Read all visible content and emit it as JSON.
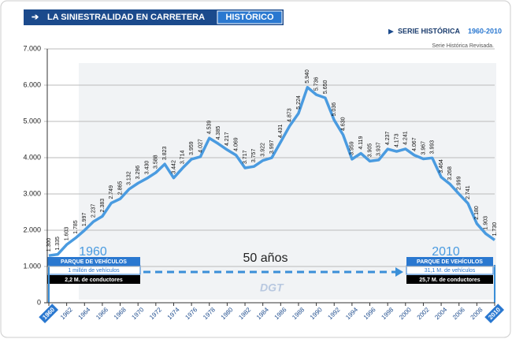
{
  "chart_data": {
    "type": "line",
    "header": {
      "title": "LA SINIESTRALIDAD EN CARRETERA",
      "tab": "HISTÓRICO"
    },
    "subtitle": {
      "label": "SERIE HISTÓRICA",
      "range": "1960-2010"
    },
    "note": "Serie Histórica Revisada.",
    "x": [
      1960,
      1961,
      1962,
      1963,
      1964,
      1965,
      1966,
      1967,
      1968,
      1969,
      1970,
      1971,
      1972,
      1973,
      1974,
      1975,
      1976,
      1977,
      1978,
      1979,
      1980,
      1981,
      1982,
      1983,
      1984,
      1985,
      1986,
      1987,
      1988,
      1989,
      1990,
      1991,
      1992,
      1993,
      1994,
      1995,
      1996,
      1997,
      1998,
      1999,
      2000,
      2001,
      2002,
      2003,
      2004,
      2005,
      2006,
      2007,
      2008,
      2009,
      2010
    ],
    "values": [
      1300,
      1335,
      1603,
      1785,
      1997,
      2237,
      2383,
      2749,
      2865,
      3132,
      3296,
      3430,
      3588,
      3823,
      3442,
      3714,
      3959,
      4027,
      4539,
      4385,
      4217,
      4069,
      3717,
      3757,
      3922,
      3997,
      4431,
      4873,
      5224,
      5940,
      5736,
      5650,
      5036,
      4630,
      3959,
      4119,
      3905,
      3937,
      4237,
      4173,
      4241,
      4067,
      3967,
      3993,
      3464,
      3268,
      2999,
      2741,
      2180,
      1903,
      1730
    ],
    "value_labels": [
      "1.300",
      "1.335",
      "1.603",
      "1.785",
      "1.997",
      "2.237",
      "2.383",
      "2.749",
      "2.865",
      "3.132",
      "3.296",
      "3.430",
      "3.588",
      "3.823",
      "3.442",
      "3.714",
      "3.959",
      "4.027",
      "4.539",
      "4.385",
      "4.217",
      "4.069",
      "3.717",
      "3.757",
      "3.922",
      "3.997",
      "4.431",
      "4.873",
      "5.224",
      "5.940",
      "5.736",
      "5.650",
      "5.036",
      "4.630",
      "3.959",
      "4.119",
      "3.905",
      "3.937",
      "4.237",
      "4.173",
      "4.241",
      "4.067",
      "3.967",
      "3.993",
      "3.464",
      "3.268",
      "2.999",
      "2.741",
      "2.180",
      "1.903",
      "1.730"
    ],
    "color": "#4a9be0",
    "xlim": [
      1960,
      2010
    ],
    "xticks": [
      1960,
      1962,
      1964,
      1966,
      1968,
      1970,
      1972,
      1974,
      1976,
      1978,
      1980,
      1982,
      1984,
      1986,
      1988,
      1990,
      1992,
      1994,
      1996,
      1998,
      2000,
      2002,
      2004,
      2006,
      2008,
      2010
    ],
    "ylim": [
      0,
      7000
    ],
    "yticks": [
      0,
      {
        "value": 1000,
        "label": "1.000"
      },
      {
        "value": 2000,
        "label": "2.000"
      },
      {
        "value": 3000,
        "label": "3.000"
      },
      {
        "value": 4000,
        "label": "4.000"
      },
      {
        "value": 5000,
        "label": "5.000"
      },
      {
        "value": 6000,
        "label": "6.000"
      },
      {
        "value": 7000,
        "label": "7.000"
      }
    ],
    "grid": true,
    "annotations": {
      "start_year": "1960",
      "end_year": "2010",
      "span": "50 años",
      "logo": "DGT",
      "start_box": {
        "title": "PARQUE DE VEHÍCULOS",
        "vehicles": "1 millón de vehículos",
        "drivers": "2,2 M. de conductores"
      },
      "end_box": {
        "title": "PARQUE DE VEHÍCULOS",
        "vehicles": "31,1 M. de vehículos",
        "drivers": "25,7 M. de conductores"
      }
    }
  }
}
